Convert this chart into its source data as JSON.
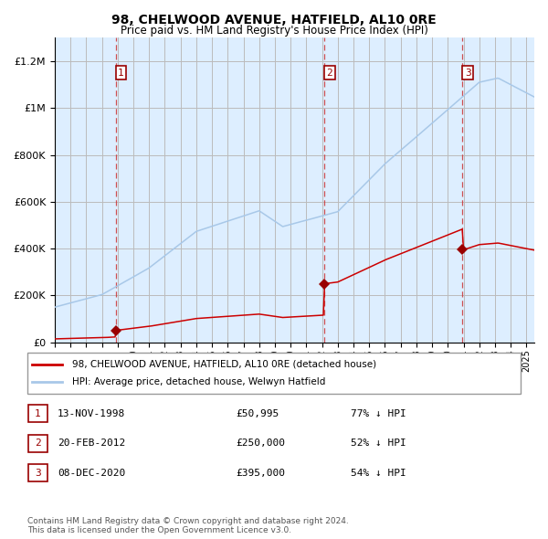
{
  "title": "98, CHELWOOD AVENUE, HATFIELD, AL10 0RE",
  "subtitle": "Price paid vs. HM Land Registry's House Price Index (HPI)",
  "property_label": "98, CHELWOOD AVENUE, HATFIELD, AL10 0RE (detached house)",
  "hpi_label": "HPI: Average price, detached house, Welwyn Hatfield",
  "footer1": "Contains HM Land Registry data © Crown copyright and database right 2024.",
  "footer2": "This data is licensed under the Open Government Licence v3.0.",
  "transactions": [
    {
      "num": 1,
      "date": "13-NOV-1998",
      "price": "50,995",
      "pct": "77%",
      "dir": "↓"
    },
    {
      "num": 2,
      "date": "20-FEB-2012",
      "price": "250,000",
      "pct": "52%",
      "dir": "↓"
    },
    {
      "num": 3,
      "date": "08-DEC-2020",
      "price": "395,000",
      "pct": "54%",
      "dir": "↓"
    }
  ],
  "transaction_dates_decimal": [
    1998.87,
    2012.13,
    2020.93
  ],
  "transaction_prices": [
    50995,
    250000,
    395000
  ],
  "hpi_color": "#a8c8e8",
  "price_color": "#cc0000",
  "marker_color": "#990000",
  "dashed_color": "#cc3333",
  "bg_color": "#ddeeff",
  "plot_bg": "#ffffff",
  "grid_color": "#bbbbbb",
  "ylim": [
    0,
    1300000
  ],
  "yticks": [
    0,
    200000,
    400000,
    600000,
    800000,
    1000000,
    1200000
  ],
  "xlim_start": 1995.0,
  "xlim_end": 2025.5
}
